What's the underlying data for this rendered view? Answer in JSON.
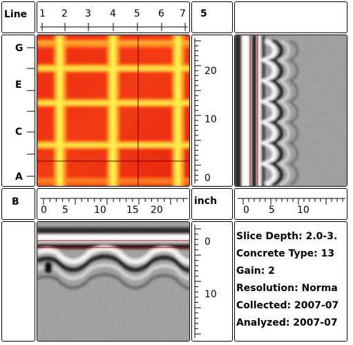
{
  "corner_label": "Line",
  "line_axis": {
    "ticks": [
      "1",
      "2",
      "3",
      "4",
      "5",
      "6",
      "7"
    ]
  },
  "top_right_label": "5",
  "row_axis": {
    "ticks": [
      "G",
      "E",
      "C",
      "A"
    ]
  },
  "depth_axis": {
    "ticks": [
      "20",
      "10",
      "0"
    ]
  },
  "mid_left_label": "B",
  "distance_axis": {
    "ticks": [
      "0",
      "5",
      "10",
      "15",
      "20"
    ]
  },
  "unit_label": "inch",
  "bscan_axis": {
    "ticks": [
      "0",
      "5",
      "10"
    ]
  },
  "vertical_axis": {
    "ticks": [
      "0",
      "10"
    ]
  },
  "info": {
    "slice_depth": "Slice Depth: 2.0-3.",
    "concrete_type": "Concrete Type: 13",
    "gain": "Gain: 2",
    "resolution": "Resolution: Norma",
    "collected": "Collected: 2007-07",
    "analyzed": "Analyzed: 2007-07"
  },
  "colors": {
    "heat_bg": "#ee2a10",
    "heat_bar": "#ffe640",
    "cursor": "#cc0000"
  }
}
